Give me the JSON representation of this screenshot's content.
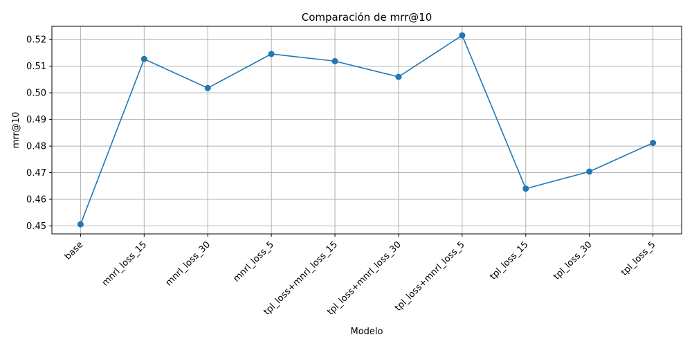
{
  "chart_data": {
    "type": "line",
    "title": "Comparación de mrr@10",
    "xlabel": "Modelo",
    "ylabel": "mrr@10",
    "categories": [
      "base",
      "mnrl_loss_15",
      "mnrl_loss_30",
      "mnrl_loss_5",
      "tpl_loss+mnrl_loss_15",
      "tpl_loss+mnrl_loss_30",
      "tpl_loss+mnrl_loss_5",
      "tpl_loss_15",
      "tpl_loss_30",
      "tpl_loss_5"
    ],
    "series": [
      {
        "values": [
          0.4506,
          0.5127,
          0.5018,
          0.5146,
          0.5119,
          0.506,
          0.5216,
          0.464,
          0.4704,
          0.4812
        ]
      }
    ],
    "ylim": [
      0.447,
      0.525
    ],
    "yticks": [
      0.45,
      0.46,
      0.47,
      0.48,
      0.49,
      0.5,
      0.51,
      0.52
    ],
    "yticklabels": [
      "0.45",
      "0.46",
      "0.47",
      "0.48",
      "0.49",
      "0.50",
      "0.51",
      "0.52"
    ],
    "grid": true,
    "line_color": "#1f77b4"
  }
}
